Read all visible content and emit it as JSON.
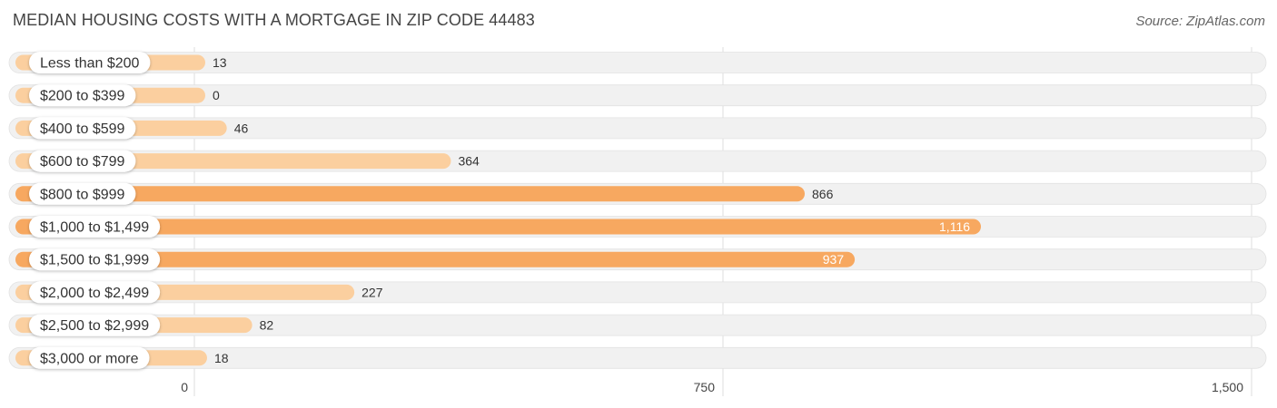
{
  "header": {
    "title": "MEDIAN HOUSING COSTS WITH A MORTGAGE IN ZIP CODE 44483",
    "source": "Source: ZipAtlas.com"
  },
  "colors": {
    "bar_light": "#fbcf9f",
    "bar_strong": "#f7a860",
    "track": "#f1f1f1",
    "grid": "#dddddd"
  },
  "chart_data": {
    "type": "bar",
    "orientation": "horizontal",
    "title": "MEDIAN HOUSING COSTS WITH A MORTGAGE IN ZIP CODE 44483",
    "categories": [
      "Less than $200",
      "$200 to $399",
      "$400 to $599",
      "$600 to $799",
      "$800 to $999",
      "$1,000 to $1,499",
      "$1,500 to $1,999",
      "$2,000 to $2,499",
      "$2,500 to $2,999",
      "$3,000 or more"
    ],
    "values": [
      13,
      0,
      46,
      364,
      866,
      1116,
      937,
      227,
      82,
      18
    ],
    "value_labels": [
      "13",
      "0",
      "46",
      "364",
      "866",
      "1,116",
      "937",
      "227",
      "82",
      "18"
    ],
    "xlim": [
      0,
      1500
    ],
    "xticks": [
      0,
      750,
      1500
    ],
    "xtick_labels": [
      "0",
      "750",
      "1,500"
    ],
    "grid": true,
    "xlabel": "",
    "ylabel": ""
  }
}
